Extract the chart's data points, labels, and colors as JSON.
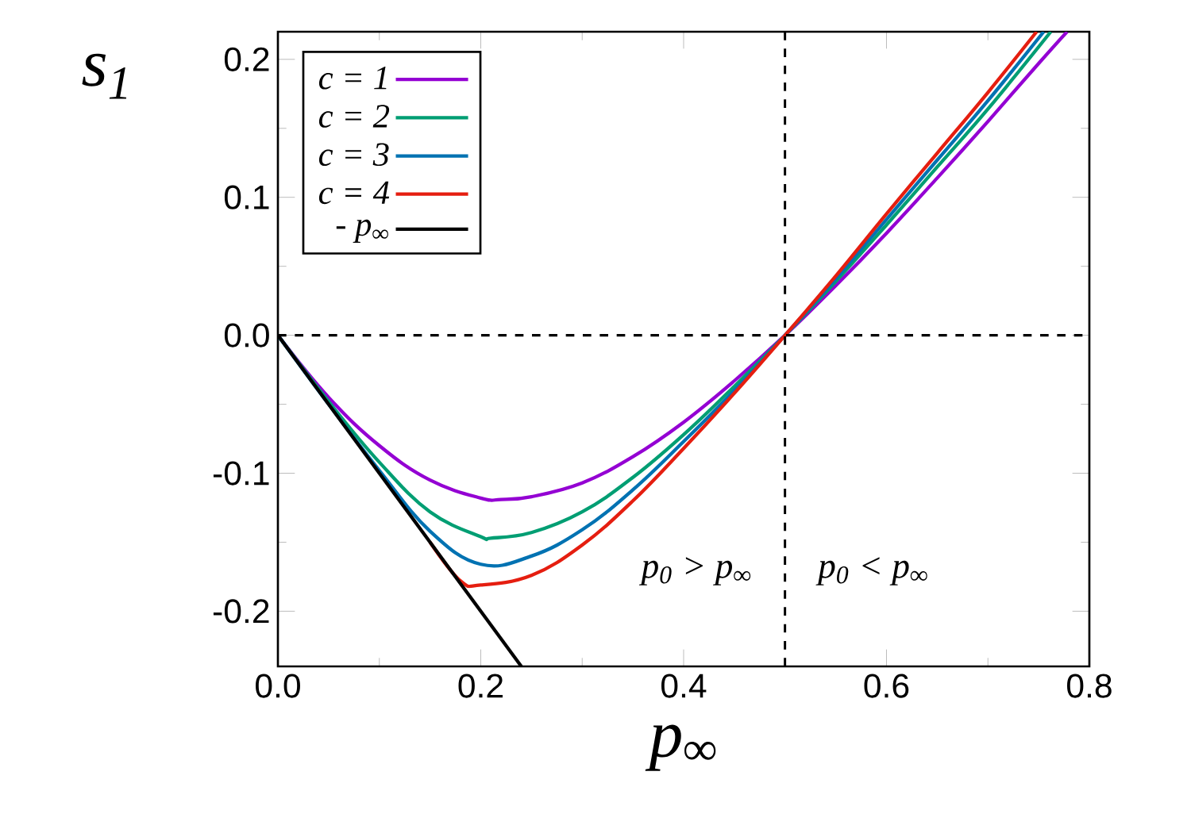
{
  "chart_data": {
    "type": "line",
    "xlabel": "p$_{∞}$",
    "ylabel": "s$_{1}$",
    "xlim": [
      0,
      0.8
    ],
    "ylim": [
      -0.24,
      0.22
    ],
    "xticks": [
      {
        "value": 0,
        "label": "0.0"
      },
      {
        "value": 0.2,
        "label": "0.2"
      },
      {
        "value": 0.4,
        "label": "0.4"
      },
      {
        "value": 0.6,
        "label": "0.6"
      },
      {
        "value": 0.8,
        "label": "0.8"
      }
    ],
    "yticks": [
      {
        "value": -0.2,
        "label": "-0.2"
      },
      {
        "value": -0.1,
        "label": "-0.1"
      },
      {
        "value": 0,
        "label": "0.0"
      },
      {
        "value": 0.1,
        "label": "0.1"
      },
      {
        "value": 0.2,
        "label": "0.2"
      }
    ],
    "legend": "top left",
    "grid": false,
    "marker": "none",
    "line_style": "solid",
    "series": [
      {
        "name": "c = 1",
        "color": "#9400d3",
        "x": [
          0,
          0.05,
          0.1,
          0.15,
          0.2,
          0.22,
          0.25,
          0.3,
          0.35,
          0.4,
          0.45,
          0.5,
          0.55,
          0.6,
          0.65,
          0.7,
          0.75,
          0.778
        ],
        "values": [
          0,
          -0.045,
          -0.08,
          -0.105,
          -0.118,
          -0.119,
          -0.117,
          -0.107,
          -0.088,
          -0.063,
          -0.033,
          0,
          0.036,
          0.074,
          0.114,
          0.155,
          0.197,
          0.22
        ]
      },
      {
        "name": "c = 2",
        "color": "#009e73",
        "x": [
          0,
          0.05,
          0.1,
          0.15,
          0.2,
          0.21,
          0.25,
          0.3,
          0.35,
          0.4,
          0.45,
          0.5,
          0.55,
          0.6,
          0.65,
          0.7,
          0.762
        ],
        "values": [
          0,
          -0.048,
          -0.092,
          -0.128,
          -0.146,
          -0.147,
          -0.143,
          -0.128,
          -0.103,
          -0.072,
          -0.037,
          0,
          0.039,
          0.08,
          0.122,
          0.164,
          0.22
        ]
      },
      {
        "name": "c = 3",
        "color": "#0072b2",
        "x": [
          0,
          0.05,
          0.1,
          0.15,
          0.2,
          0.25,
          0.3,
          0.35,
          0.4,
          0.45,
          0.5,
          0.55,
          0.6,
          0.65,
          0.7,
          0.755
        ],
        "values": [
          0,
          -0.05,
          -0.098,
          -0.142,
          -0.166,
          -0.16,
          -0.141,
          -0.112,
          -0.077,
          -0.04,
          0,
          0.041,
          0.084,
          0.127,
          0.17,
          0.22
        ]
      },
      {
        "name": "c = 4",
        "color": "#e51e10",
        "x": [
          0.15,
          0.18,
          0.2,
          0.25,
          0.3,
          0.35,
          0.4,
          0.45,
          0.5,
          0.55,
          0.6,
          0.65,
          0.7,
          0.748
        ],
        "values": [
          -0.15,
          -0.178,
          -0.181,
          -0.174,
          -0.152,
          -0.12,
          -0.082,
          -0.042,
          0,
          0.043,
          0.088,
          0.132,
          0.176,
          0.22
        ]
      },
      {
        "name": "- p$_{∞}$",
        "color": "#000000",
        "x": [
          0,
          0.24
        ],
        "values": [
          0,
          -0.24
        ]
      }
    ],
    "ref_lines": [
      {
        "axis": "x",
        "value": 0.5,
        "line_style": "dashed"
      },
      {
        "axis": "y",
        "value": 0,
        "line_style": "dashed"
      }
    ],
    "annotations": [
      "p$_{0}$ > p$_{∞}$",
      "p$_{0}$ < p$_{∞}$"
    ]
  }
}
